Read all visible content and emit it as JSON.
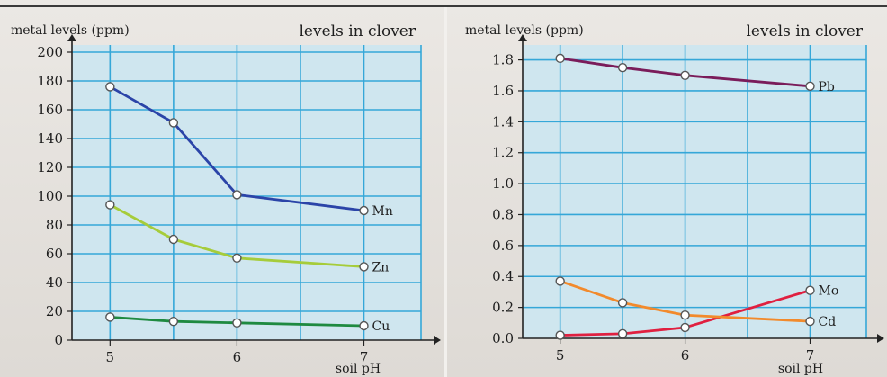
{
  "chart_data": [
    {
      "type": "line",
      "title": "levels in clover",
      "ylabel": "metal levels (ppm)",
      "xlabel": "soil pH",
      "xlim": [
        4.7,
        7.45
      ],
      "ylim": [
        0,
        200
      ],
      "x_ticks": [
        5,
        6,
        7
      ],
      "y_ticks": [
        0,
        20,
        40,
        60,
        80,
        100,
        120,
        140,
        160,
        180,
        200
      ],
      "grid": true,
      "series": [
        {
          "name": "Mn",
          "color": "#2b44a8",
          "x": [
            5,
            5.5,
            6,
            7
          ],
          "y": [
            176,
            151,
            101,
            90
          ]
        },
        {
          "name": "Zn",
          "color": "#a6cc3a",
          "x": [
            5,
            5.5,
            6,
            7
          ],
          "y": [
            94,
            70,
            57,
            51
          ]
        },
        {
          "name": "Cu",
          "color": "#1e8a40",
          "x": [
            5,
            5.5,
            6,
            7
          ],
          "y": [
            16,
            13,
            12,
            10
          ]
        }
      ]
    },
    {
      "type": "line",
      "title": "levels in clover",
      "ylabel": "metal levels (ppm)",
      "xlabel": "soil pH",
      "xlim": [
        4.7,
        7.45
      ],
      "ylim": [
        0,
        1.85
      ],
      "x_ticks": [
        5,
        6,
        7
      ],
      "y_ticks": [
        0,
        0.2,
        0.4,
        0.6,
        0.8,
        1.0,
        1.2,
        1.4,
        1.6,
        1.8
      ],
      "grid": true,
      "series": [
        {
          "name": "Pb",
          "color": "#7a1c5a",
          "x": [
            5,
            5.5,
            6,
            7
          ],
          "y": [
            1.81,
            1.75,
            1.7,
            1.63
          ]
        },
        {
          "name": "Mo",
          "color": "#e02040",
          "x": [
            5,
            5.5,
            6,
            7
          ],
          "y": [
            0.02,
            0.03,
            0.07,
            0.31
          ]
        },
        {
          "name": "Cd",
          "color": "#f28a2c",
          "x": [
            5,
            5.5,
            6,
            7
          ],
          "y": [
            0.37,
            0.23,
            0.15,
            0.11
          ]
        }
      ]
    }
  ]
}
